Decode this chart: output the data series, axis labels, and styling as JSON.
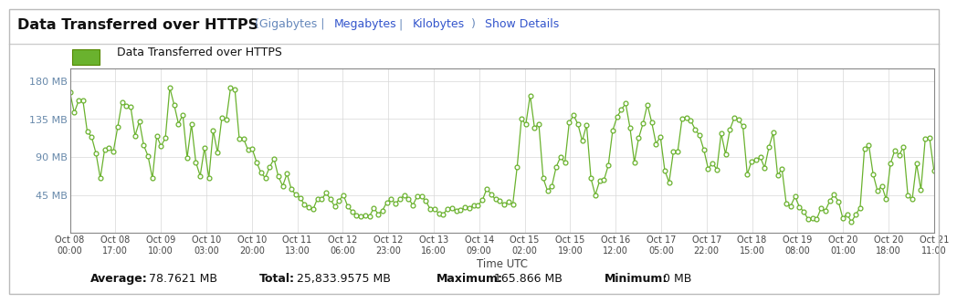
{
  "title": "Data Transferred over HTTPS",
  "legend_label": "Data Transferred over HTTPS",
  "line_color": "#6ab22e",
  "bg_color": "#ffffff",
  "grid_color": "#cccccc",
  "ytick_labels": [
    "45 MB",
    "90 MB",
    "135 MB",
    "180 MB"
  ],
  "ytick_values": [
    45,
    90,
    135,
    180
  ],
  "ylim": [
    0,
    195
  ],
  "xlabel": "Time UTC",
  "xtick_labels": [
    "Oct 08\n00:00",
    "Oct 08\n17:00",
    "Oct 09\n10:00",
    "Oct 10\n03:00",
    "Oct 10\n20:00",
    "Oct 11\n13:00",
    "Oct 12\n06:00",
    "Oct 12\n23:00",
    "Oct 13\n16:00",
    "Oct 14\n09:00",
    "Oct 15\n02:00",
    "Oct 15\n19:00",
    "Oct 16\n12:00",
    "Oct 17\n05:00",
    "Oct 17\n22:00",
    "Oct 18\n15:00",
    "Oct 19\n08:00",
    "Oct 20\n01:00",
    "Oct 20\n18:00",
    "Oct 21\n11:00"
  ],
  "stat_avg": "78.7621 MB",
  "stat_total": "25,833.9575 MB",
  "stat_max": "165.866 MB",
  "stat_min": "0 MB"
}
